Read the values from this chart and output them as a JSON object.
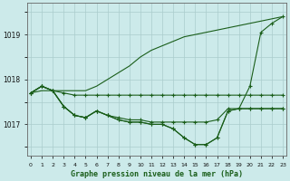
{
  "title": "Graphe pression niveau de la mer (hPa)",
  "hours": [
    0,
    1,
    2,
    3,
    4,
    5,
    6,
    7,
    8,
    9,
    10,
    11,
    12,
    13,
    14,
    15,
    16,
    17,
    18,
    19,
    20,
    21,
    22,
    23
  ],
  "yticks": [
    1017,
    1018,
    1019
  ],
  "ylim": [
    1016.3,
    1019.7
  ],
  "xlim": [
    -0.3,
    23.3
  ],
  "bg_color": "#cceaea",
  "grid_color": "#aacccc",
  "line_color": "#1a5e1a",
  "line_width": 0.8,
  "marker_size": 2.5,
  "line1_nomarker": [
    1017.7,
    1017.75,
    1017.75,
    1017.75,
    1017.75,
    1017.75,
    1017.85,
    1018.0,
    1018.15,
    1018.3,
    1018.5,
    1018.65,
    1018.75,
    1018.85,
    1018.95,
    1019.0,
    1019.05,
    1019.1,
    1019.15,
    1019.2,
    1019.25,
    1019.3,
    1019.35,
    1019.4
  ],
  "line2": [
    1017.7,
    1017.85,
    1017.75,
    1017.4,
    1017.2,
    1017.15,
    1017.3,
    1017.2,
    1017.1,
    1017.05,
    1017.05,
    1017.0,
    1017.0,
    1016.9,
    1016.7,
    1016.55,
    1016.55,
    1016.7,
    1017.3,
    1017.35,
    1017.85,
    1019.05,
    1019.25,
    1019.4
  ],
  "line3": [
    1017.7,
    1017.85,
    1017.75,
    1017.4,
    1017.2,
    1017.15,
    1017.3,
    1017.2,
    1017.1,
    1017.05,
    1017.05,
    1017.0,
    1017.0,
    1016.9,
    1016.7,
    1016.55,
    1016.55,
    1016.7,
    1017.3,
    1017.35,
    1017.35,
    1017.35,
    1017.35,
    1017.35
  ],
  "line4": [
    1017.7,
    1017.85,
    1017.75,
    1017.4,
    1017.2,
    1017.15,
    1017.3,
    1017.2,
    1017.15,
    1017.1,
    1017.1,
    1017.05,
    1017.05,
    1017.05,
    1017.05,
    1017.05,
    1017.05,
    1017.1,
    1017.35,
    1017.35,
    1017.35,
    1017.35,
    1017.35,
    1017.35
  ],
  "line5": [
    1017.7,
    1017.85,
    1017.75,
    1017.7,
    1017.65,
    1017.65,
    1017.65,
    1017.65,
    1017.65,
    1017.65,
    1017.65,
    1017.65,
    1017.65,
    1017.65,
    1017.65,
    1017.65,
    1017.65,
    1017.65,
    1017.65,
    1017.65,
    1017.65,
    1017.65,
    1017.65,
    1017.65
  ]
}
